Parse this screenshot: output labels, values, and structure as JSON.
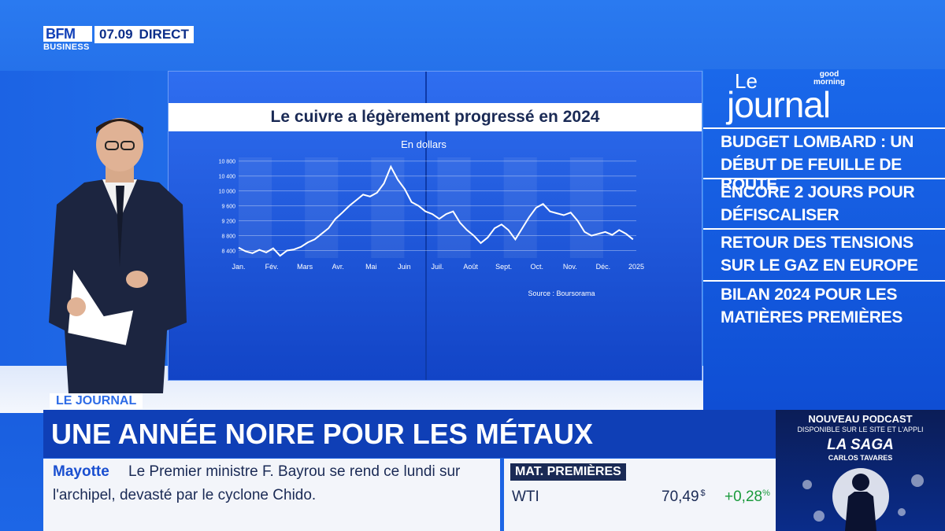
{
  "channel": {
    "logo_line1": "BFM",
    "logo_line2": "BUSINESS",
    "time": "07.09",
    "live": "DIRECT"
  },
  "screen": {
    "title": "Le cuivre a légèrement progressé en 2024",
    "chart_data": {
      "type": "line",
      "subtitle": "En dollars",
      "source": "Source : Boursorama",
      "x_labels": [
        "Jan.",
        "Fév.",
        "Mars",
        "Avr.",
        "Mai",
        "Juin",
        "Juil.",
        "Août",
        "Sept.",
        "Oct.",
        "Nov.",
        "Déc.",
        "2025"
      ],
      "y_ticks": [
        8400,
        8800,
        9200,
        9600,
        10000,
        10400,
        10800
      ],
      "ylim": [
        8200,
        10900
      ],
      "series": [
        {
          "values": [
            8480,
            8380,
            8330,
            8420,
            8350,
            8460,
            8260,
            8400,
            8430,
            8500,
            8620,
            8700,
            8850,
            9000,
            9250,
            9420,
            9600,
            9750,
            9900,
            9850,
            9950,
            10200,
            10650,
            10300,
            10050,
            9700,
            9600,
            9450,
            9380,
            9250,
            9380,
            9450,
            9150,
            8950,
            8800,
            8600,
            8750,
            9000,
            9100,
            8950,
            8700,
            9000,
            9300,
            9550,
            9650,
            9450,
            9400,
            9350,
            9420,
            9200,
            8900,
            8800,
            8850,
            8900,
            8820,
            8950,
            8850,
            8700
          ]
        }
      ]
    }
  },
  "journal": {
    "le": "Le",
    "title": "journal",
    "badge_line1": "good",
    "badge_line2": "morning",
    "headlines": [
      {
        "line1": "BUDGET LOMBARD : UN",
        "line2": "DÉBUT DE FEUILLE DE ROUTE"
      },
      {
        "line1": "ENCORE 2 JOURS POUR",
        "line2": "DÉFISCALISER"
      },
      {
        "line1": "RETOUR DES TENSIONS",
        "line2": "SUR LE GAZ EN EUROPE"
      },
      {
        "line1": "BILAN 2024 POUR LES",
        "line2": "MATIÈRES PREMIÈRES"
      }
    ]
  },
  "lower_third": {
    "tag": "LE JOURNAL",
    "headline": "UNE ANNÉE NOIRE POUR LES MÉTAUX"
  },
  "ticker": {
    "keyword": "Mayotte",
    "line1": "Le Premier ministre F. Bayrou se rend ce lundi sur",
    "line2": "l'archipel, devasté par le cyclone Chido."
  },
  "market": {
    "header": "MAT. PREMIÈRES",
    "symbol": "WTI",
    "value": "70,49",
    "unit": "$",
    "change": "+0,28",
    "change_unit": "%",
    "change_color": "#1a9a3c"
  },
  "podcast": {
    "line1": "NOUVEAU PODCAST",
    "line2": "DISPONIBLE SUR LE SITE ET L'APPLI",
    "title": "LA SAGA",
    "subject": "CARLOS TAVARES"
  }
}
